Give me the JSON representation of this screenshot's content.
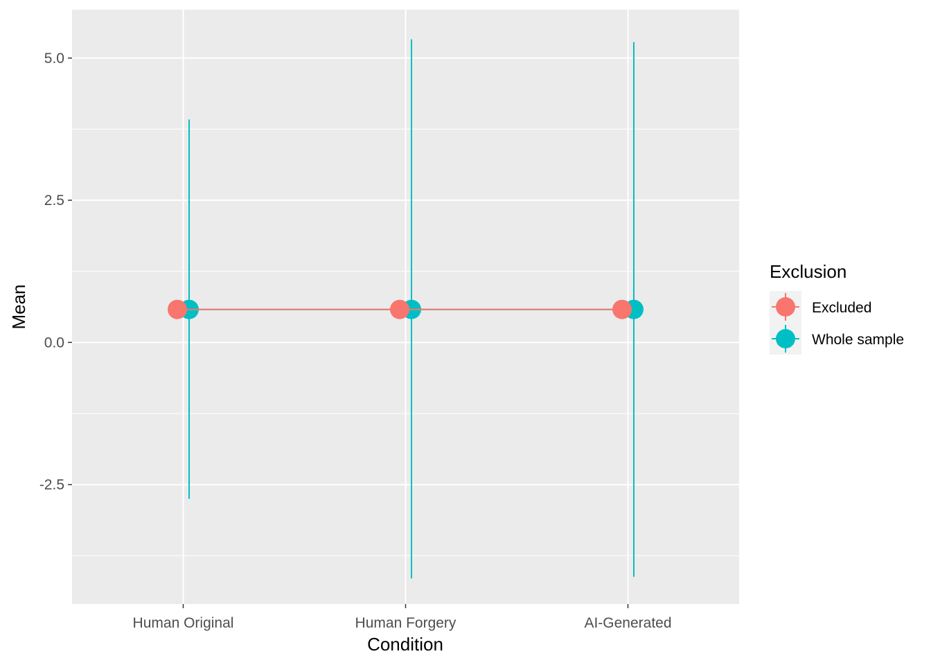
{
  "chart_data": {
    "type": "scatter",
    "xlabel": "Condition",
    "ylabel": "Mean",
    "categories": [
      "Human Original",
      "Human Forgery",
      "AI-Generated"
    ],
    "yticks": [
      -2.5,
      0.0,
      2.5,
      5.0
    ],
    "ytick_labels": [
      "-2.5",
      "0.0",
      "2.5",
      "5.0"
    ],
    "ylim": [
      -4.6,
      5.85
    ],
    "grid": true,
    "legend": {
      "title": "Exclusion",
      "placement": "right",
      "entries": [
        "Excluded",
        "Whole sample"
      ]
    },
    "series": [
      {
        "name": "Excluded",
        "color": "#F8766D",
        "values": [
          0.58,
          0.58,
          0.58
        ],
        "error_low": [
          0.58,
          0.58,
          0.58
        ],
        "error_high": [
          0.58,
          0.58,
          0.58
        ]
      },
      {
        "name": "Whole sample",
        "color": "#00BFC4",
        "values": [
          0.58,
          0.58,
          0.58
        ],
        "error_low": [
          -2.75,
          -4.15,
          -4.12
        ],
        "error_high": [
          3.92,
          5.33,
          5.28
        ]
      }
    ]
  }
}
